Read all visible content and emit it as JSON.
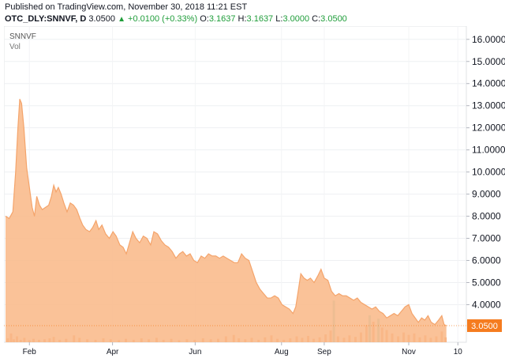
{
  "header": {
    "published": "Published on TradingView.com, November 30, 2018 11:21 EST",
    "symbol": "OTC_DLY:SNNVF, D",
    "last": "3.0500",
    "change": "+0.0100 (+0.33%)",
    "open_label": "O:",
    "open": "3.1637",
    "high_label": "H:",
    "high": "3.1637",
    "low_label": "L:",
    "low": "3.0000",
    "close_label": "C:",
    "close": "3.0500"
  },
  "legend": {
    "symbol": "SNNVF",
    "volume": "Vol"
  },
  "colors": {
    "area_fill": "#f9b98a",
    "area_line": "#f4a46b",
    "volume_orange": "#f5945a",
    "volume_teal": "#7fc8c2",
    "price_tag": "#f57c1f"
  },
  "chart_data": {
    "type": "area",
    "ylim": [
      2.3,
      16.6
    ],
    "y_ticks": [
      "16.0000",
      "15.0000",
      "14.0000",
      "13.0000",
      "12.0000",
      "11.0000",
      "10.0000",
      "9.0000",
      "8.0000",
      "7.0000",
      "6.0000",
      "5.0000",
      "4.0000"
    ],
    "x_ticks": [
      {
        "label": "Feb",
        "t": 0.052
      },
      {
        "label": "Apr",
        "t": 0.233
      },
      {
        "label": "Jun",
        "t": 0.413
      },
      {
        "label": "Aug",
        "t": 0.601
      },
      {
        "label": "Sep",
        "t": 0.694
      },
      {
        "label": "Nov",
        "t": 0.878
      },
      {
        "label": "10",
        "t": 0.985
      }
    ],
    "last_price": "3.0500",
    "last_value": 3.05,
    "series": [
      {
        "t": 0.0,
        "v": 8.0
      },
      {
        "t": 0.008,
        "v": 7.9
      },
      {
        "t": 0.016,
        "v": 8.2
      },
      {
        "t": 0.022,
        "v": 10.0
      },
      {
        "t": 0.027,
        "v": 12.0
      },
      {
        "t": 0.031,
        "v": 13.3
      },
      {
        "t": 0.035,
        "v": 13.1
      },
      {
        "t": 0.04,
        "v": 12.0
      },
      {
        "t": 0.046,
        "v": 10.2
      },
      {
        "t": 0.052,
        "v": 9.3
      },
      {
        "t": 0.058,
        "v": 8.4
      },
      {
        "t": 0.063,
        "v": 8.0
      },
      {
        "t": 0.068,
        "v": 8.9
      },
      {
        "t": 0.074,
        "v": 8.5
      },
      {
        "t": 0.08,
        "v": 8.3
      },
      {
        "t": 0.087,
        "v": 8.4
      },
      {
        "t": 0.094,
        "v": 8.5
      },
      {
        "t": 0.1,
        "v": 8.9
      },
      {
        "t": 0.105,
        "v": 9.4
      },
      {
        "t": 0.11,
        "v": 9.1
      },
      {
        "t": 0.115,
        "v": 9.3
      },
      {
        "t": 0.121,
        "v": 9.0
      },
      {
        "t": 0.127,
        "v": 8.6
      },
      {
        "t": 0.134,
        "v": 8.2
      },
      {
        "t": 0.141,
        "v": 8.6
      },
      {
        "t": 0.148,
        "v": 8.5
      },
      {
        "t": 0.155,
        "v": 8.3
      },
      {
        "t": 0.162,
        "v": 7.9
      },
      {
        "t": 0.168,
        "v": 7.6
      },
      {
        "t": 0.175,
        "v": 7.4
      },
      {
        "t": 0.183,
        "v": 7.3
      },
      {
        "t": 0.19,
        "v": 7.5
      },
      {
        "t": 0.197,
        "v": 7.8
      },
      {
        "t": 0.203,
        "v": 7.4
      },
      {
        "t": 0.21,
        "v": 7.6
      },
      {
        "t": 0.218,
        "v": 7.2
      },
      {
        "t": 0.226,
        "v": 7.0
      },
      {
        "t": 0.234,
        "v": 7.3
      },
      {
        "t": 0.241,
        "v": 7.1
      },
      {
        "t": 0.249,
        "v": 6.7
      },
      {
        "t": 0.256,
        "v": 6.6
      },
      {
        "t": 0.263,
        "v": 6.3
      },
      {
        "t": 0.27,
        "v": 6.8
      },
      {
        "t": 0.277,
        "v": 7.3
      },
      {
        "t": 0.284,
        "v": 7.0
      },
      {
        "t": 0.292,
        "v": 6.8
      },
      {
        "t": 0.3,
        "v": 7.1
      },
      {
        "t": 0.308,
        "v": 7.0
      },
      {
        "t": 0.316,
        "v": 6.7
      },
      {
        "t": 0.323,
        "v": 7.3
      },
      {
        "t": 0.331,
        "v": 7.2
      },
      {
        "t": 0.339,
        "v": 6.9
      },
      {
        "t": 0.347,
        "v": 6.7
      },
      {
        "t": 0.355,
        "v": 6.6
      },
      {
        "t": 0.363,
        "v": 6.4
      },
      {
        "t": 0.371,
        "v": 6.1
      },
      {
        "t": 0.379,
        "v": 6.3
      },
      {
        "t": 0.386,
        "v": 6.4
      },
      {
        "t": 0.394,
        "v": 6.2
      },
      {
        "t": 0.402,
        "v": 6.3
      },
      {
        "t": 0.41,
        "v": 6.0
      },
      {
        "t": 0.418,
        "v": 5.9
      },
      {
        "t": 0.426,
        "v": 6.2
      },
      {
        "t": 0.434,
        "v": 6.1
      },
      {
        "t": 0.442,
        "v": 6.3
      },
      {
        "t": 0.45,
        "v": 6.2
      },
      {
        "t": 0.458,
        "v": 6.2
      },
      {
        "t": 0.466,
        "v": 6.1
      },
      {
        "t": 0.474,
        "v": 6.2
      },
      {
        "t": 0.482,
        "v": 6.1
      },
      {
        "t": 0.49,
        "v": 6.0
      },
      {
        "t": 0.498,
        "v": 5.9
      },
      {
        "t": 0.506,
        "v": 5.9
      },
      {
        "t": 0.514,
        "v": 6.3
      },
      {
        "t": 0.522,
        "v": 6.1
      },
      {
        "t": 0.53,
        "v": 6.0
      },
      {
        "t": 0.538,
        "v": 5.5
      },
      {
        "t": 0.546,
        "v": 5.0
      },
      {
        "t": 0.554,
        "v": 4.7
      },
      {
        "t": 0.562,
        "v": 4.5
      },
      {
        "t": 0.57,
        "v": 4.3
      },
      {
        "t": 0.578,
        "v": 4.3
      },
      {
        "t": 0.586,
        "v": 4.4
      },
      {
        "t": 0.594,
        "v": 4.3
      },
      {
        "t": 0.602,
        "v": 4.0
      },
      {
        "t": 0.61,
        "v": 3.9
      },
      {
        "t": 0.618,
        "v": 3.8
      },
      {
        "t": 0.626,
        "v": 3.6
      },
      {
        "t": 0.632,
        "v": 3.9
      },
      {
        "t": 0.638,
        "v": 4.7
      },
      {
        "t": 0.643,
        "v": 5.4
      },
      {
        "t": 0.65,
        "v": 5.2
      },
      {
        "t": 0.657,
        "v": 5.1
      },
      {
        "t": 0.664,
        "v": 5.2
      },
      {
        "t": 0.672,
        "v": 5.0
      },
      {
        "t": 0.68,
        "v": 5.3
      },
      {
        "t": 0.687,
        "v": 5.6
      },
      {
        "t": 0.694,
        "v": 5.2
      },
      {
        "t": 0.702,
        "v": 5.1
      },
      {
        "t": 0.71,
        "v": 4.6
      },
      {
        "t": 0.718,
        "v": 4.4
      },
      {
        "t": 0.726,
        "v": 4.5
      },
      {
        "t": 0.734,
        "v": 4.4
      },
      {
        "t": 0.742,
        "v": 4.4
      },
      {
        "t": 0.75,
        "v": 4.3
      },
      {
        "t": 0.758,
        "v": 4.2
      },
      {
        "t": 0.766,
        "v": 4.3
      },
      {
        "t": 0.774,
        "v": 4.1
      },
      {
        "t": 0.782,
        "v": 4.0
      },
      {
        "t": 0.79,
        "v": 3.9
      },
      {
        "t": 0.798,
        "v": 3.8
      },
      {
        "t": 0.806,
        "v": 3.9
      },
      {
        "t": 0.814,
        "v": 3.7
      },
      {
        "t": 0.822,
        "v": 3.6
      },
      {
        "t": 0.83,
        "v": 3.4
      },
      {
        "t": 0.838,
        "v": 3.5
      },
      {
        "t": 0.846,
        "v": 3.6
      },
      {
        "t": 0.854,
        "v": 3.5
      },
      {
        "t": 0.862,
        "v": 3.7
      },
      {
        "t": 0.87,
        "v": 3.9
      },
      {
        "t": 0.878,
        "v": 4.0
      },
      {
        "t": 0.885,
        "v": 3.6
      },
      {
        "t": 0.892,
        "v": 3.4
      },
      {
        "t": 0.899,
        "v": 3.2
      },
      {
        "t": 0.906,
        "v": 3.4
      },
      {
        "t": 0.913,
        "v": 3.3
      },
      {
        "t": 0.92,
        "v": 3.5
      },
      {
        "t": 0.927,
        "v": 3.2
      },
      {
        "t": 0.935,
        "v": 3.1
      },
      {
        "t": 0.943,
        "v": 3.3
      },
      {
        "t": 0.95,
        "v": 3.5
      },
      {
        "t": 0.955,
        "v": 3.1
      },
      {
        "t": 0.96,
        "v": 3.05
      }
    ],
    "volume": [
      {
        "t": 0.005,
        "h": 0.08
      },
      {
        "t": 0.012,
        "h": 0.18
      },
      {
        "t": 0.018,
        "h": 0.06
      },
      {
        "t": 0.025,
        "h": 0.12
      },
      {
        "t": 0.033,
        "h": 0.05
      },
      {
        "t": 0.041,
        "h": 0.09
      },
      {
        "t": 0.052,
        "h": 0.04
      },
      {
        "t": 0.061,
        "h": 0.07
      },
      {
        "t": 0.073,
        "h": 0.05
      },
      {
        "t": 0.085,
        "h": 0.06
      },
      {
        "t": 0.096,
        "h": 0.08
      },
      {
        "t": 0.105,
        "h": 0.11
      },
      {
        "t": 0.118,
        "h": 0.05
      },
      {
        "t": 0.132,
        "h": 0.07
      },
      {
        "t": 0.149,
        "h": 0.14
      },
      {
        "t": 0.161,
        "h": 0.09
      },
      {
        "t": 0.178,
        "h": 0.06
      },
      {
        "t": 0.196,
        "h": 0.05
      },
      {
        "t": 0.213,
        "h": 0.08
      },
      {
        "t": 0.229,
        "h": 0.06
      },
      {
        "t": 0.247,
        "h": 0.04
      },
      {
        "t": 0.262,
        "h": 0.07
      },
      {
        "t": 0.279,
        "h": 0.05
      },
      {
        "t": 0.296,
        "h": 0.08
      },
      {
        "t": 0.312,
        "h": 0.06
      },
      {
        "t": 0.329,
        "h": 0.09
      },
      {
        "t": 0.344,
        "h": 0.05
      },
      {
        "t": 0.361,
        "h": 0.07
      },
      {
        "t": 0.378,
        "h": 0.04
      },
      {
        "t": 0.395,
        "h": 0.06
      },
      {
        "t": 0.412,
        "h": 0.05
      },
      {
        "t": 0.43,
        "h": 0.08
      },
      {
        "t": 0.447,
        "h": 0.06
      },
      {
        "t": 0.463,
        "h": 0.07
      },
      {
        "t": 0.48,
        "h": 0.12
      },
      {
        "t": 0.497,
        "h": 0.15
      },
      {
        "t": 0.508,
        "h": 0.08
      },
      {
        "t": 0.522,
        "h": 0.06
      },
      {
        "t": 0.536,
        "h": 0.09
      },
      {
        "t": 0.551,
        "h": 0.05
      },
      {
        "t": 0.565,
        "h": 0.1
      },
      {
        "t": 0.579,
        "h": 0.14
      },
      {
        "t": 0.592,
        "h": 0.07
      },
      {
        "t": 0.606,
        "h": 0.05
      },
      {
        "t": 0.62,
        "h": 0.08
      },
      {
        "t": 0.634,
        "h": 0.12
      },
      {
        "t": 0.646,
        "h": 0.09
      },
      {
        "t": 0.659,
        "h": 0.13
      },
      {
        "t": 0.671,
        "h": 0.07
      },
      {
        "t": 0.684,
        "h": 0.1
      },
      {
        "t": 0.697,
        "h": 0.16
      },
      {
        "t": 0.708,
        "h": 0.24
      },
      {
        "t": 0.715,
        "h": 0.85,
        "c": "teal"
      },
      {
        "t": 0.724,
        "h": 0.12
      },
      {
        "t": 0.737,
        "h": 0.09
      },
      {
        "t": 0.749,
        "h": 0.14
      },
      {
        "t": 0.762,
        "h": 0.11
      },
      {
        "t": 0.774,
        "h": 0.2
      },
      {
        "t": 0.786,
        "h": 0.35
      },
      {
        "t": 0.793,
        "h": 0.55,
        "c": "teal"
      },
      {
        "t": 0.801,
        "h": 0.42
      },
      {
        "t": 0.812,
        "h": 0.48,
        "c": "teal"
      },
      {
        "t": 0.82,
        "h": 0.3
      },
      {
        "t": 0.83,
        "h": 0.25
      },
      {
        "t": 0.842,
        "h": 0.18
      },
      {
        "t": 0.855,
        "h": 0.12
      },
      {
        "t": 0.867,
        "h": 0.2
      },
      {
        "t": 0.878,
        "h": 0.15
      },
      {
        "t": 0.89,
        "h": 0.18
      },
      {
        "t": 0.902,
        "h": 0.1
      },
      {
        "t": 0.914,
        "h": 0.14
      },
      {
        "t": 0.926,
        "h": 0.09
      },
      {
        "t": 0.938,
        "h": 0.12
      },
      {
        "t": 0.95,
        "h": 0.22
      },
      {
        "t": 0.958,
        "h": 0.1
      }
    ]
  }
}
